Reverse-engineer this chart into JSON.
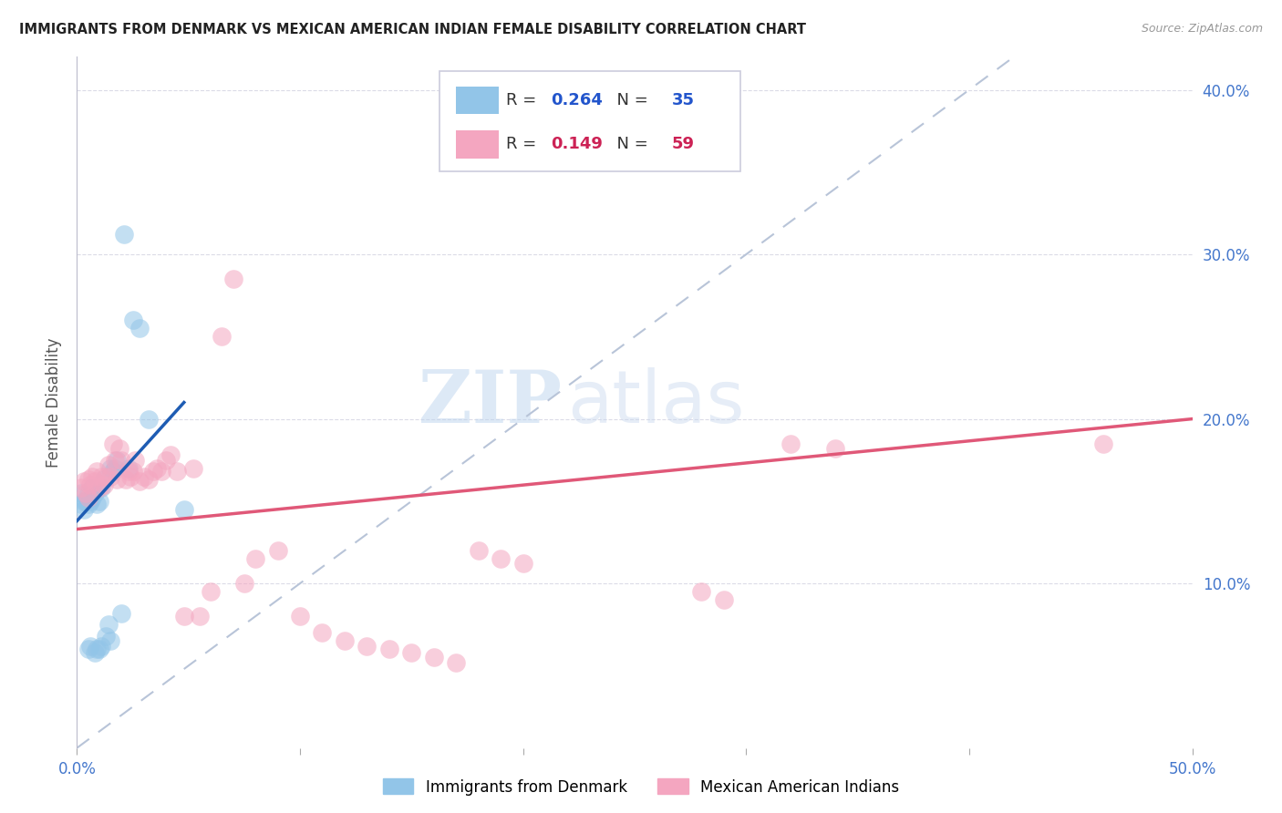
{
  "title": "IMMIGRANTS FROM DENMARK VS MEXICAN AMERICAN INDIAN FEMALE DISABILITY CORRELATION CHART",
  "source": "Source: ZipAtlas.com",
  "xlabel": "",
  "ylabel": "Female Disability",
  "xlim": [
    0.0,
    0.5
  ],
  "ylim": [
    0.0,
    0.42
  ],
  "xtick_labels": [
    "0.0%",
    "",
    "",
    "",
    "",
    "50.0%"
  ],
  "xtick_values": [
    0.0,
    0.1,
    0.2,
    0.3,
    0.4,
    0.5
  ],
  "ytick_labels": [
    "10.0%",
    "20.0%",
    "30.0%",
    "40.0%"
  ],
  "ytick_values": [
    0.1,
    0.2,
    0.3,
    0.4
  ],
  "legend_label1": "Immigrants from Denmark",
  "legend_label2": "Mexican American Indians",
  "watermark_ZIP": "ZIP",
  "watermark_atlas": "atlas",
  "blue_color": "#92C5E8",
  "pink_color": "#F4A6C0",
  "blue_line_color": "#1E5CB3",
  "pink_line_color": "#E05878",
  "diag_line_color": "#B8C4D8",
  "blue_R": "0.264",
  "blue_N": "35",
  "pink_R": "0.149",
  "pink_N": "59",
  "blue_scatter_x": [
    0.002,
    0.002,
    0.003,
    0.003,
    0.004,
    0.005,
    0.005,
    0.005,
    0.006,
    0.006,
    0.007,
    0.007,
    0.008,
    0.008,
    0.009,
    0.009,
    0.01,
    0.01,
    0.011,
    0.011,
    0.012,
    0.013,
    0.014,
    0.015,
    0.015,
    0.016,
    0.017,
    0.018,
    0.02,
    0.021,
    0.023,
    0.025,
    0.028,
    0.032,
    0.048
  ],
  "blue_scatter_y": [
    0.155,
    0.148,
    0.15,
    0.145,
    0.15,
    0.155,
    0.148,
    0.06,
    0.15,
    0.062,
    0.158,
    0.152,
    0.155,
    0.058,
    0.06,
    0.148,
    0.06,
    0.15,
    0.158,
    0.062,
    0.163,
    0.068,
    0.075,
    0.17,
    0.065,
    0.168,
    0.17,
    0.175,
    0.082,
    0.312,
    0.17,
    0.26,
    0.255,
    0.2,
    0.145
  ],
  "pink_scatter_x": [
    0.002,
    0.003,
    0.004,
    0.005,
    0.005,
    0.006,
    0.007,
    0.008,
    0.009,
    0.01,
    0.011,
    0.012,
    0.013,
    0.014,
    0.015,
    0.016,
    0.017,
    0.018,
    0.019,
    0.02,
    0.022,
    0.023,
    0.024,
    0.025,
    0.026,
    0.028,
    0.03,
    0.032,
    0.034,
    0.036,
    0.038,
    0.04,
    0.042,
    0.045,
    0.048,
    0.052,
    0.055,
    0.06,
    0.065,
    0.07,
    0.075,
    0.08,
    0.09,
    0.1,
    0.11,
    0.12,
    0.13,
    0.14,
    0.15,
    0.16,
    0.17,
    0.18,
    0.19,
    0.2,
    0.28,
    0.29,
    0.32,
    0.34,
    0.46
  ],
  "pink_scatter_y": [
    0.158,
    0.162,
    0.155,
    0.163,
    0.152,
    0.16,
    0.165,
    0.162,
    0.168,
    0.158,
    0.165,
    0.16,
    0.165,
    0.172,
    0.165,
    0.185,
    0.175,
    0.163,
    0.182,
    0.175,
    0.163,
    0.168,
    0.165,
    0.168,
    0.175,
    0.162,
    0.165,
    0.163,
    0.168,
    0.17,
    0.168,
    0.175,
    0.178,
    0.168,
    0.08,
    0.17,
    0.08,
    0.095,
    0.25,
    0.285,
    0.1,
    0.115,
    0.12,
    0.08,
    0.07,
    0.065,
    0.062,
    0.06,
    0.058,
    0.055,
    0.052,
    0.12,
    0.115,
    0.112,
    0.095,
    0.09,
    0.185,
    0.182,
    0.185
  ],
  "blue_line_x": [
    0.0,
    0.048
  ],
  "blue_line_y": [
    0.138,
    0.21
  ],
  "pink_line_x": [
    0.0,
    0.5
  ],
  "pink_line_y": [
    0.133,
    0.2
  ],
  "diag_line_x": [
    0.0,
    0.42
  ],
  "diag_line_y": [
    0.0,
    0.42
  ]
}
